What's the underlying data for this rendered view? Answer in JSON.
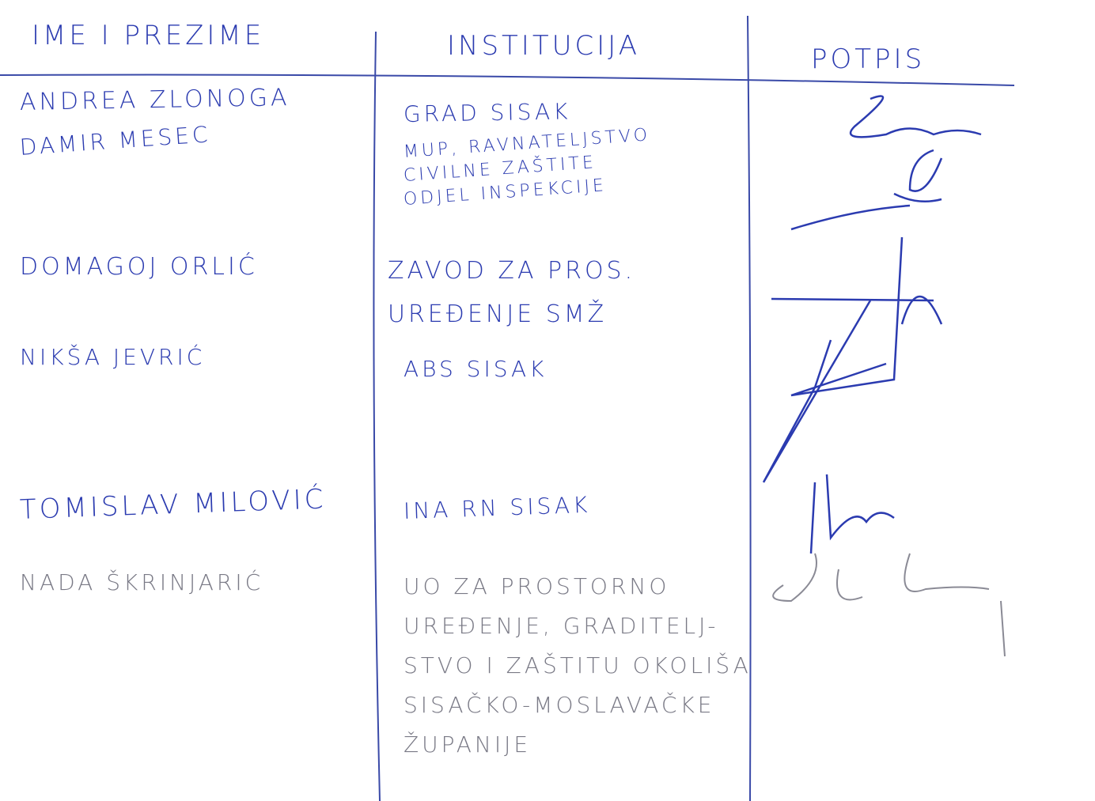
{
  "header": {
    "name": "IME I PREZIME",
    "institution": "INSTITUCIJA",
    "signature": "POTPIS"
  },
  "rows": [
    {
      "name": "ANDREA ZLONOGA",
      "institution": [
        "GRAD SISAK"
      ]
    },
    {
      "name": "DAMIR MESEC",
      "institution": [
        "MUP, RAVNATELJSTVO",
        "CIVILNE ZAŠTITE",
        "ODJEL INSPEKCIJE"
      ]
    },
    {
      "name": "DOMAGOJ ORLIĆ",
      "institution": [
        "ZAVOD ZA PROS.",
        "UREĐENJE SMŽ"
      ]
    },
    {
      "name": "NIKŠA JEVRIĆ",
      "institution": [
        "ABS SISAK"
      ]
    },
    {
      "name": "TOMISLAV MILOVIĆ",
      "institution": [
        "INA RN SISAK"
      ]
    },
    {
      "name": "NADA ŠKRINJARIĆ",
      "institution": [
        "UO ZA PROSTORNO",
        "UREĐENJE, GRADITELJ-",
        "STVO I ZAŠTITU OKOLIŠA",
        "SISAČKO-MOSLAVAČKE",
        "ŽUPANIJE"
      ]
    }
  ]
}
